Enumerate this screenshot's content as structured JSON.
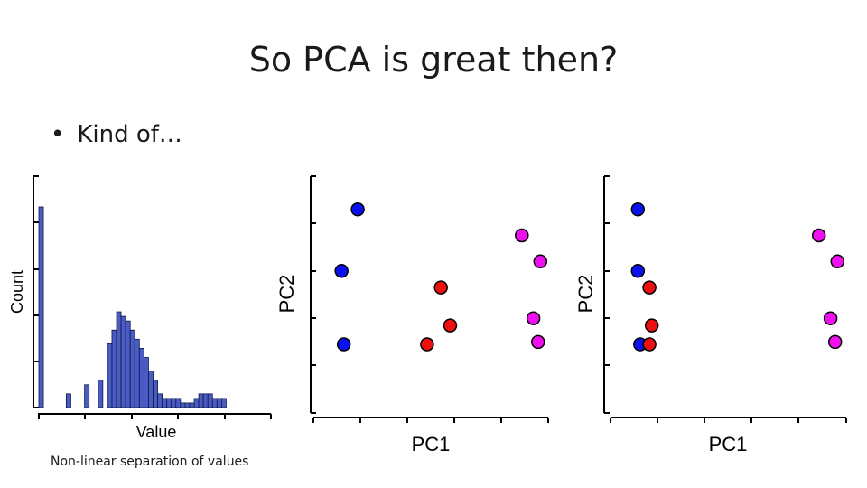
{
  "title": "So PCA is great then?",
  "bullet": "Kind of…",
  "caption": "Non-linear separation of values",
  "chart_data": [
    {
      "type": "bar",
      "xlabel": "Value",
      "ylabel": "Count",
      "bar_color": "#4a5bc4",
      "values": [
        44,
        0,
        0,
        0,
        0,
        0,
        3,
        0,
        0,
        0,
        5,
        0,
        0,
        6,
        0,
        14,
        17,
        21,
        20,
        19,
        17,
        15,
        13,
        11,
        8,
        6,
        3,
        2,
        2,
        2,
        2,
        1,
        1,
        1,
        2,
        3,
        3,
        3,
        2,
        2,
        2
      ]
    },
    {
      "type": "scatter",
      "xlabel": "PC1",
      "ylabel": "PC2",
      "xlim": [
        0,
        10
      ],
      "ylim": [
        0,
        10
      ],
      "series": [
        {
          "color": "#0a10ee",
          "points": [
            [
              1.8,
              8.6
            ],
            [
              1.1,
              6.0
            ],
            [
              1.2,
              2.9
            ]
          ]
        },
        {
          "color": "#ee1010",
          "points": [
            [
              5.4,
              5.3
            ],
            [
              5.8,
              3.7
            ],
            [
              4.8,
              2.9
            ]
          ]
        },
        {
          "color": "#ee10ee",
          "points": [
            [
              8.9,
              7.5
            ],
            [
              9.7,
              6.4
            ],
            [
              9.4,
              4.0
            ],
            [
              9.6,
              3.0
            ]
          ]
        }
      ]
    },
    {
      "type": "scatter",
      "xlabel": "PC1",
      "ylabel": "PC2",
      "xlim": [
        0,
        10
      ],
      "ylim": [
        0,
        10
      ],
      "series": [
        {
          "color": "#0a10ee",
          "points": [
            [
              1.1,
              8.6
            ],
            [
              1.1,
              6.0
            ],
            [
              1.2,
              2.9
            ]
          ]
        },
        {
          "color": "#ee1010",
          "points": [
            [
              1.6,
              5.3
            ],
            [
              1.7,
              3.7
            ],
            [
              1.6,
              2.9
            ]
          ]
        },
        {
          "color": "#ee10ee",
          "points": [
            [
              8.9,
              7.5
            ],
            [
              9.7,
              6.4
            ],
            [
              9.4,
              4.0
            ],
            [
              9.6,
              3.0
            ]
          ]
        }
      ]
    }
  ]
}
